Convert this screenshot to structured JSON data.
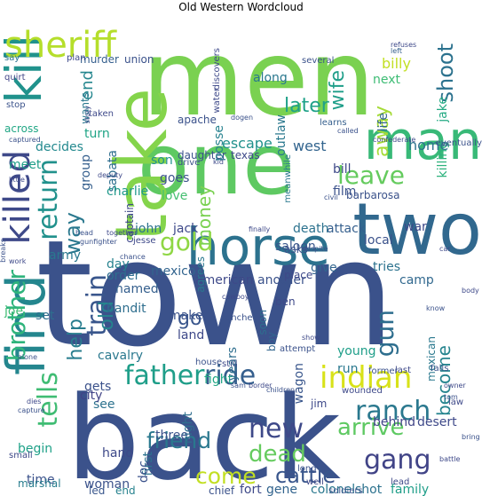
{
  "title": "Old Western Wordcloud",
  "words": [
    {
      "text": "town",
      "color": "#3b528b"
    },
    {
      "text": "back",
      "color": "#3b528b"
    },
    {
      "text": "men",
      "color": "#7ad151"
    },
    {
      "text": "one",
      "color": "#5ec962"
    },
    {
      "text": "take",
      "color": "#84d44b"
    },
    {
      "text": "two",
      "color": "#31688e"
    },
    {
      "text": "horse",
      "color": "#2c728e"
    },
    {
      "text": "man",
      "color": "#38b977"
    },
    {
      "text": "find",
      "color": "#24868e"
    },
    {
      "text": "kill",
      "color": "#20928c"
    },
    {
      "text": "sheriff",
      "color": "#b5de2b"
    },
    {
      "text": "killed",
      "color": "#3e4989"
    },
    {
      "text": "father",
      "color": "#1f9e89"
    },
    {
      "text": "ride",
      "color": "#355f8d"
    },
    {
      "text": "indian",
      "color": "#d8e219"
    },
    {
      "text": "ranch",
      "color": "#2a788e"
    },
    {
      "text": "gang",
      "color": "#414487"
    },
    {
      "text": "arrive",
      "color": "#5ec962"
    },
    {
      "text": "tells",
      "color": "#3fbc73"
    },
    {
      "text": "brother",
      "color": "#2fb47c"
    },
    {
      "text": "train",
      "color": "#39568c"
    },
    {
      "text": "leave",
      "color": "#65cb5e"
    },
    {
      "text": "return",
      "color": "#21918c"
    },
    {
      "text": "gold",
      "color": "#8fd744"
    },
    {
      "text": "gun",
      "color": "#2e6e8e"
    },
    {
      "text": "new",
      "color": "#3e4989"
    },
    {
      "text": "dead",
      "color": "#65cb5e"
    },
    {
      "text": "friend",
      "color": "#2a788e"
    },
    {
      "text": "come",
      "color": "#c2df23"
    },
    {
      "text": "cattle",
      "color": "#39568c"
    },
    {
      "text": "shoot",
      "color": "#2c728e"
    },
    {
      "text": "wife",
      "color": "#1f9e89"
    },
    {
      "text": "later",
      "color": "#1fa188"
    },
    {
      "text": "away",
      "color": "#a5db36"
    },
    {
      "text": "old",
      "color": "#25848e"
    },
    {
      "text": "help",
      "color": "#287d8e"
    },
    {
      "text": "way",
      "color": "#2a788e"
    },
    {
      "text": "go",
      "color": "#39568c"
    },
    {
      "text": "become",
      "color": "#25848e"
    },
    {
      "text": "money",
      "color": "#7ad151"
    },
    {
      "text": "jake",
      "color": "#24aa83"
    },
    {
      "text": "killing",
      "color": "#2db27d"
    },
    {
      "text": "end",
      "color": "#24868e"
    },
    {
      "text": "escape",
      "color": "#21918c"
    },
    {
      "text": "west",
      "color": "#32648e"
    },
    {
      "text": "billy",
      "color": "#c2df23"
    },
    {
      "text": "home",
      "color": "#2c728e"
    },
    {
      "text": "decides",
      "color": "#23898e"
    },
    {
      "text": "daughter",
      "color": "#3b528b"
    },
    {
      "text": "texas",
      "color": "#3e4989"
    },
    {
      "text": "meet",
      "color": "#1f9e89"
    },
    {
      "text": "turn",
      "color": "#20a486"
    },
    {
      "text": "along",
      "color": "#2a788e"
    },
    {
      "text": "next",
      "color": "#3dbc74"
    },
    {
      "text": "life",
      "color": "#32658e"
    },
    {
      "text": "posse",
      "color": "#26818e"
    },
    {
      "text": "outlaw",
      "color": "#2a788e"
    },
    {
      "text": "group",
      "color": "#355f8d"
    },
    {
      "text": "sabata",
      "color": "#2e6e8e"
    },
    {
      "text": "son",
      "color": "#20928c"
    },
    {
      "text": "goes",
      "color": "#3b528b"
    },
    {
      "text": "love",
      "color": "#44bf70"
    },
    {
      "text": "charlie",
      "color": "#1f998a"
    },
    {
      "text": "jack",
      "color": "#3e4989"
    },
    {
      "text": "john",
      "color": "#2c728e"
    },
    {
      "text": "army",
      "color": "#2a788e"
    },
    {
      "text": "day",
      "color": "#26828e"
    },
    {
      "text": "order",
      "color": "#2e6e8e"
    },
    {
      "text": "named",
      "color": "#355f8d"
    },
    {
      "text": "mexico",
      "color": "#32648e"
    },
    {
      "text": "american",
      "color": "#3e4989"
    },
    {
      "text": "another",
      "color": "#3b528b"
    },
    {
      "text": "give",
      "color": "#32658e"
    },
    {
      "text": "tries",
      "color": "#2c728e"
    },
    {
      "text": "camp",
      "color": "#31688e"
    },
    {
      "text": "bandit",
      "color": "#2e6e8e"
    },
    {
      "text": "make",
      "color": "#3b528b"
    },
    {
      "text": "land",
      "color": "#3e4989"
    },
    {
      "text": "young",
      "color": "#1f9e89"
    },
    {
      "text": "run",
      "color": "#2a788e"
    },
    {
      "text": "death",
      "color": "#2c728e"
    },
    {
      "text": "attack",
      "color": "#355f8d"
    },
    {
      "text": "saloon",
      "color": "#39568c"
    },
    {
      "text": "local",
      "color": "#3b528b"
    },
    {
      "text": "war",
      "color": "#3e4989"
    },
    {
      "text": "film",
      "color": "#3b528b"
    },
    {
      "text": "bill",
      "color": "#3e4989"
    },
    {
      "text": "meanwhile",
      "color": "#2a788e"
    },
    {
      "text": "barbarosa",
      "color": "#3b528b"
    },
    {
      "text": "fight",
      "color": "#22a785"
    },
    {
      "text": "gets",
      "color": "#3b528b"
    },
    {
      "text": "see",
      "color": "#2c728e"
    },
    {
      "text": "city",
      "color": "#414487"
    },
    {
      "text": "set",
      "color": "#2e6e8e"
    },
    {
      "text": "joe",
      "color": "#3fbc73"
    },
    {
      "text": "cavalry",
      "color": "#2a788e"
    },
    {
      "text": "three",
      "color": "#3b528b"
    },
    {
      "text": "hand",
      "color": "#3e4989"
    },
    {
      "text": "night",
      "color": "#2e6e8e"
    },
    {
      "text": "first",
      "color": "#2c728e"
    },
    {
      "text": "years",
      "color": "#2e6e8e"
    },
    {
      "text": "wagon",
      "color": "#39568c"
    },
    {
      "text": "jim",
      "color": "#3e4989"
    },
    {
      "text": "begin",
      "color": "#1fa188"
    },
    {
      "text": "time",
      "color": "#3b528b"
    },
    {
      "text": "woman",
      "color": "#3b528b"
    },
    {
      "text": "gene",
      "color": "#32648e"
    },
    {
      "text": "doc",
      "color": "#3b528b"
    },
    {
      "text": "fort",
      "color": "#3e4989"
    },
    {
      "text": "colonel",
      "color": "#2a788e"
    },
    {
      "text": "family",
      "color": "#1f9e89"
    },
    {
      "text": "shot",
      "color": "#2c728e"
    },
    {
      "text": "desert",
      "color": "#3e4989"
    },
    {
      "text": "behind",
      "color": "#414487"
    },
    {
      "text": "mexican",
      "color": "#2a788e"
    },
    {
      "text": "soon",
      "color": "#2e6e8e"
    },
    {
      "text": "boy",
      "color": "#32658e"
    },
    {
      "text": "ben",
      "color": "#3e4989"
    },
    {
      "text": "marshal",
      "color": "#287d8e"
    },
    {
      "text": "led",
      "color": "#39568c"
    },
    {
      "text": "chief",
      "color": "#3b528b"
    },
    {
      "text": "end",
      "color": "#26828e"
    },
    {
      "text": "captain",
      "color": "#3e4989"
    },
    {
      "text": "asks",
      "color": "#3b528b"
    },
    {
      "text": "place",
      "color": "#3e4989"
    },
    {
      "text": "murder",
      "color": "#355f8d"
    },
    {
      "text": "union",
      "color": "#3b528b"
    },
    {
      "text": "plan",
      "color": "#3e4989"
    },
    {
      "text": "say",
      "color": "#2c728e"
    },
    {
      "text": "quirt",
      "color": "#414487"
    },
    {
      "text": "stop",
      "color": "#3b528b"
    },
    {
      "text": "across",
      "color": "#22a785"
    },
    {
      "text": "taken",
      "color": "#3e4989"
    },
    {
      "text": "wants",
      "color": "#2a788e"
    },
    {
      "text": "apache",
      "color": "#3b528b"
    },
    {
      "text": "water",
      "color": "#3e4989"
    },
    {
      "text": "learns",
      "color": "#355f8d"
    },
    {
      "text": "called",
      "color": "#3b528b"
    },
    {
      "text": "confederate",
      "color": "#3e4989"
    },
    {
      "text": "eventually",
      "color": "#3b528b"
    },
    {
      "text": "refuses",
      "color": "#3e4989"
    },
    {
      "text": "left",
      "color": "#355f8d"
    },
    {
      "text": "several",
      "color": "#3b528b"
    },
    {
      "text": "discovers",
      "color": "#3e4989"
    },
    {
      "text": "kid",
      "color": "#3e4989"
    },
    {
      "text": "drive",
      "color": "#3b528b"
    },
    {
      "text": "deputy",
      "color": "#3e4989"
    },
    {
      "text": "captured",
      "color": "#3b528b"
    },
    {
      "text": "little",
      "color": "#3e4989"
    },
    {
      "text": "civil",
      "color": "#3b528b"
    },
    {
      "text": "jesse",
      "color": "#3e4989"
    },
    {
      "text": "chance",
      "color": "#3b528b"
    },
    {
      "text": "finally",
      "color": "#3e4989"
    },
    {
      "text": "head",
      "color": "#3b528b"
    },
    {
      "text": "together",
      "color": "#3e4989"
    },
    {
      "text": "despite",
      "color": "#3b528b"
    },
    {
      "text": "car",
      "color": "#3e4989"
    },
    {
      "text": "breaks",
      "color": "#3b528b"
    },
    {
      "text": "work",
      "color": "#3e4989"
    },
    {
      "text": "rancher",
      "color": "#3b528b"
    },
    {
      "text": "cowboy",
      "color": "#3e4989"
    },
    {
      "text": "attempt",
      "color": "#3b528b"
    },
    {
      "text": "show",
      "color": "#3e4989"
    },
    {
      "text": "know",
      "color": "#3b528b"
    },
    {
      "text": "body",
      "color": "#3e4989"
    },
    {
      "text": "house",
      "color": "#3b528b"
    },
    {
      "text": "still",
      "color": "#3e4989"
    },
    {
      "text": "former",
      "color": "#3b528b"
    },
    {
      "text": "last",
      "color": "#3e4989"
    },
    {
      "text": "falls",
      "color": "#3b528b"
    },
    {
      "text": "owner",
      "color": "#3e4989"
    },
    {
      "text": "tom",
      "color": "#3b528b"
    },
    {
      "text": "law",
      "color": "#3e4989"
    },
    {
      "text": "sam",
      "color": "#3b528b"
    },
    {
      "text": "border",
      "color": "#3e4989"
    },
    {
      "text": "children",
      "color": "#3b528b"
    },
    {
      "text": "wounded",
      "color": "#3e4989"
    },
    {
      "text": "alone",
      "color": "#3b528b"
    },
    {
      "text": "dies",
      "color": "#3e4989"
    },
    {
      "text": "capture",
      "color": "#3b528b"
    },
    {
      "text": "small",
      "color": "#3e4989"
    },
    {
      "text": "bring",
      "color": "#3b528b"
    },
    {
      "text": "battle",
      "color": "#3e4989"
    },
    {
      "text": "long",
      "color": "#3b528b"
    },
    {
      "text": "well",
      "color": "#3e4989"
    },
    {
      "text": "soldiers",
      "color": "#3b528b"
    },
    {
      "text": "story",
      "color": "#3e4989"
    },
    {
      "text": "gunfighter",
      "color": "#3b528b"
    },
    {
      "text": "lead",
      "color": "#3e4989"
    },
    {
      "text": "dogen",
      "color": "#3b528b"
    },
    {
      "text": "agrees",
      "color": "#2a788e"
    }
  ]
}
